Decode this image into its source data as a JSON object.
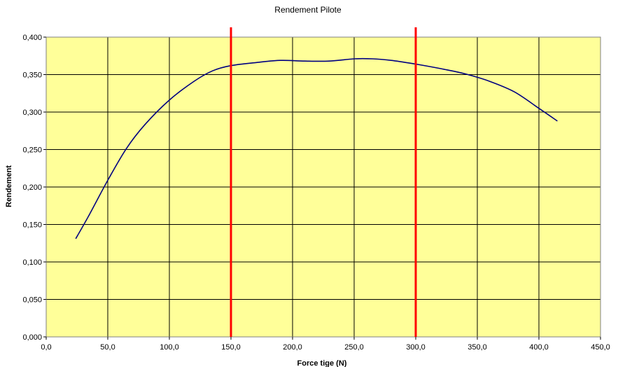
{
  "chart_data": {
    "type": "line",
    "title": "Rendement Pilote",
    "xlabel": "Force tige (N)",
    "ylabel": "Rendement",
    "xlim": [
      0,
      450
    ],
    "ylim": [
      0,
      0.4
    ],
    "grid": true,
    "legend": "none",
    "x_ticks": [
      "0,0",
      "50,0",
      "100,0",
      "150,0",
      "200,0",
      "250,0",
      "300,0",
      "350,0",
      "400,0",
      "450,0"
    ],
    "y_ticks": [
      "0,000",
      "0,050",
      "0,100",
      "0,150",
      "0,200",
      "0,250",
      "0,300",
      "0,350",
      "0,400"
    ],
    "series": [
      {
        "color": "#000080",
        "x": [
          24,
          35,
          50,
          65,
          80,
          100,
          120,
          135,
          150,
          170,
          190,
          210,
          230,
          250,
          265,
          280,
          300,
          320,
          340,
          360,
          380,
          400,
          415
        ],
        "y": [
          0.131,
          0.163,
          0.209,
          0.251,
          0.283,
          0.316,
          0.341,
          0.355,
          0.362,
          0.366,
          0.369,
          0.368,
          0.368,
          0.371,
          0.371,
          0.369,
          0.364,
          0.358,
          0.351,
          0.341,
          0.327,
          0.305,
          0.288
        ]
      }
    ],
    "vertical_lines": [
      {
        "x": 150,
        "color": "#ff0000"
      },
      {
        "x": 300,
        "color": "#ff0000"
      }
    ],
    "plot_background": "#ffff99",
    "gridline_color": "#000000"
  }
}
